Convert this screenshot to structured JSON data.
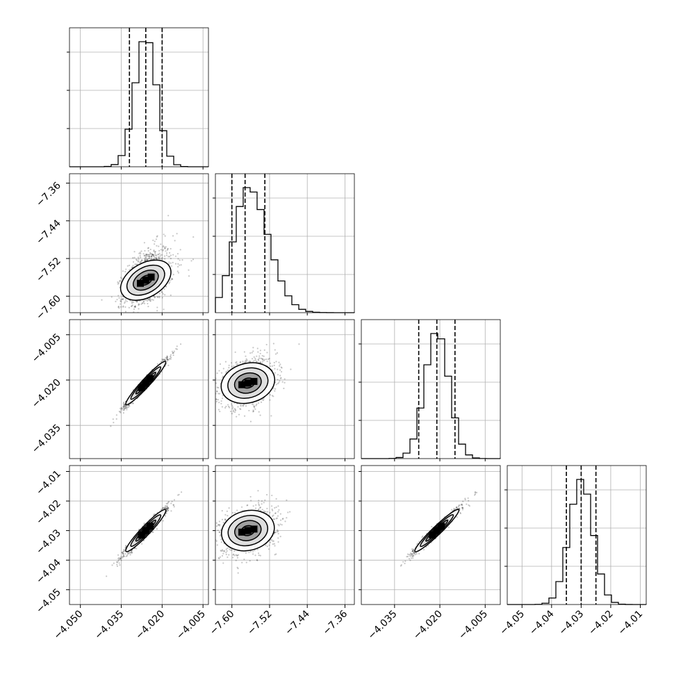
{
  "chart_data": {
    "type": "corner",
    "grid": true,
    "parameters": [
      {
        "index": 0,
        "range": [
          -4.054,
          -4.003
        ],
        "ticks": [
          -4.05,
          -4.035,
          -4.02,
          -4.005
        ],
        "tick_labels": [
          "−4.050",
          "−4.035",
          "−4.020",
          "−4.005"
        ],
        "mean": -4.026,
        "sd": 0.004,
        "quantiles": [
          -4.032,
          -4.026,
          -4.02
        ]
      },
      {
        "index": 1,
        "range": [
          -7.635,
          -7.34
        ],
        "ticks": [
          -7.6,
          -7.52,
          -7.44,
          -7.36
        ],
        "tick_labels": [
          "−7.60",
          "−7.52",
          "−7.44",
          "−7.36"
        ],
        "mean": -7.566,
        "sd": 0.03,
        "quantiles": [
          -7.6,
          -7.572,
          -7.53
        ]
      },
      {
        "index": 2,
        "range": [
          -4.046,
          -4.0
        ],
        "ticks": [
          -4.035,
          -4.02,
          -4.005
        ],
        "tick_labels": [
          "−4.035",
          "−4.020",
          "−4.005"
        ],
        "mean": -4.021,
        "sd": 0.004,
        "quantiles": [
          -4.027,
          -4.021,
          -4.015
        ]
      },
      {
        "index": 3,
        "range": [
          -4.055,
          -4.008
        ],
        "ticks": [
          -4.05,
          -4.04,
          -4.03,
          -4.02,
          -4.01
        ],
        "tick_labels": [
          "−4.05",
          "−4.04",
          "−4.03",
          "−4.02",
          "−4.01"
        ],
        "mean": -4.03,
        "sd": 0.004,
        "quantiles": [
          -4.035,
          -4.03,
          -4.025
        ]
      }
    ],
    "diag_left_ticks": {
      "tick_positions_frac": [
        0.275,
        0.55,
        0.825
      ]
    },
    "correlations": {
      "1,0": 0.45,
      "2,0": 0.98,
      "2,1": 0.32,
      "3,0": 0.97,
      "3,1": 0.3,
      "3,2": 0.98
    },
    "contour_levels_sigma": [
      0.5,
      1.0,
      1.5,
      2.0
    ]
  }
}
